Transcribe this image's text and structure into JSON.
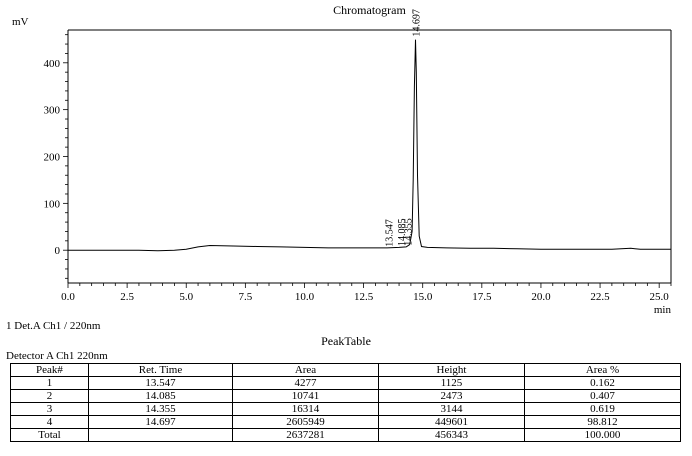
{
  "chart_data": {
    "type": "line",
    "title": "Chromatogram",
    "ylabel": "mV",
    "xlabel": "min",
    "xlim": [
      0,
      25.5
    ],
    "ylim": [
      -70,
      470
    ],
    "x_ticks": [
      "0.0",
      "2.5",
      "5.0",
      "7.5",
      "10.0",
      "12.5",
      "15.0",
      "17.5",
      "20.0",
      "22.5",
      "25.0"
    ],
    "x_tick_values": [
      0,
      2.5,
      5,
      7.5,
      10,
      12.5,
      15,
      17.5,
      20,
      22.5,
      25
    ],
    "y_ticks": [
      "0",
      "100",
      "200",
      "300",
      "400"
    ],
    "y_tick_values": [
      0,
      100,
      200,
      300,
      400
    ],
    "grid": false,
    "series": [
      {
        "color": "#000000",
        "baseline": [
          [
            0,
            0
          ],
          [
            1,
            0
          ],
          [
            2,
            0
          ],
          [
            3,
            0
          ],
          [
            3.8,
            -1
          ],
          [
            4.5,
            0
          ],
          [
            5,
            2
          ],
          [
            5.5,
            7
          ],
          [
            6,
            10
          ],
          [
            7,
            9
          ],
          [
            8,
            8
          ],
          [
            9,
            7
          ],
          [
            10,
            6
          ],
          [
            11,
            5
          ],
          [
            12,
            5
          ],
          [
            13,
            5
          ],
          [
            13.5,
            5
          ],
          [
            14,
            6
          ],
          [
            14.3,
            7
          ],
          [
            14.45,
            12
          ],
          [
            14.55,
            40
          ],
          [
            14.6,
            150
          ],
          [
            14.65,
            350
          ],
          [
            14.697,
            449.6
          ],
          [
            14.73,
            380
          ],
          [
            14.78,
            160
          ],
          [
            14.85,
            30
          ],
          [
            14.95,
            8
          ],
          [
            15.2,
            6
          ],
          [
            16,
            5
          ],
          [
            17,
            4
          ],
          [
            18,
            4
          ],
          [
            19,
            3
          ],
          [
            20,
            2
          ],
          [
            21,
            2
          ],
          [
            22,
            2
          ],
          [
            23,
            2
          ],
          [
            23.8,
            4
          ],
          [
            24.2,
            2
          ],
          [
            25,
            2
          ],
          [
            25.5,
            2
          ]
        ]
      }
    ],
    "peak_labels": [
      {
        "text": "13.547",
        "x": 13.547,
        "y": 1.1
      },
      {
        "text": "14.085",
        "x": 14.085,
        "y": 2.5
      },
      {
        "text": "14.355",
        "x": 14.355,
        "y": 3.1
      },
      {
        "text": "14.697",
        "x": 14.697,
        "y": 449.6
      }
    ]
  },
  "trace_label": "1 Det.A Ch1 / 220nm",
  "peak_table": {
    "title": "PeakTable",
    "detector": "Detector A Ch1 220nm",
    "headers": [
      "Peak#",
      "Ret. Time",
      "Area",
      "Height",
      "Area %"
    ],
    "rows": [
      [
        "1",
        "13.547",
        "4277",
        "1125",
        "0.162"
      ],
      [
        "2",
        "14.085",
        "10741",
        "2473",
        "0.407"
      ],
      [
        "3",
        "14.355",
        "16314",
        "3144",
        "0.619"
      ],
      [
        "4",
        "14.697",
        "2605949",
        "449601",
        "98.812"
      ]
    ],
    "total": [
      "Total",
      "",
      "2637281",
      "456343",
      "100.000"
    ]
  }
}
